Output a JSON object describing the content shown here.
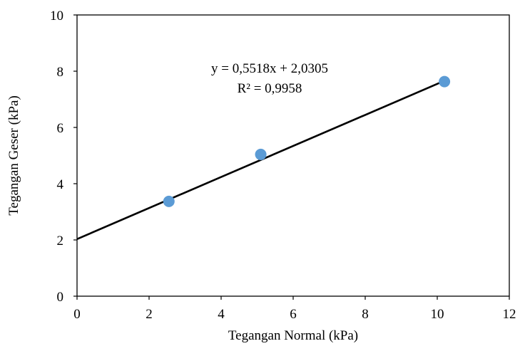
{
  "chart_data": {
    "type": "scatter",
    "title": "",
    "xlabel": "Tegangan Normal (kPa)",
    "ylabel": "Tegangan Geser (kPa)",
    "xlim": [
      0,
      12
    ],
    "ylim": [
      0,
      10
    ],
    "x_ticks": [
      0,
      2,
      4,
      6,
      8,
      10,
      12
    ],
    "y_ticks": [
      0,
      2,
      4,
      6,
      8,
      10
    ],
    "grid": false,
    "legend": "none",
    "series": [
      {
        "x": [
          2.55,
          5.1,
          10.2
        ],
        "y": [
          3.37,
          5.04,
          7.63
        ],
        "color": "#5b9bd5",
        "marker": "circle"
      }
    ],
    "trendline": {
      "type": "linear",
      "slope": 0.5518,
      "intercept": 2.0305,
      "x_range": [
        0,
        10.2
      ],
      "color": "#000000",
      "equation": "y = 0,5518x + 2,0305",
      "r_squared": "R² = 0,9958"
    }
  }
}
